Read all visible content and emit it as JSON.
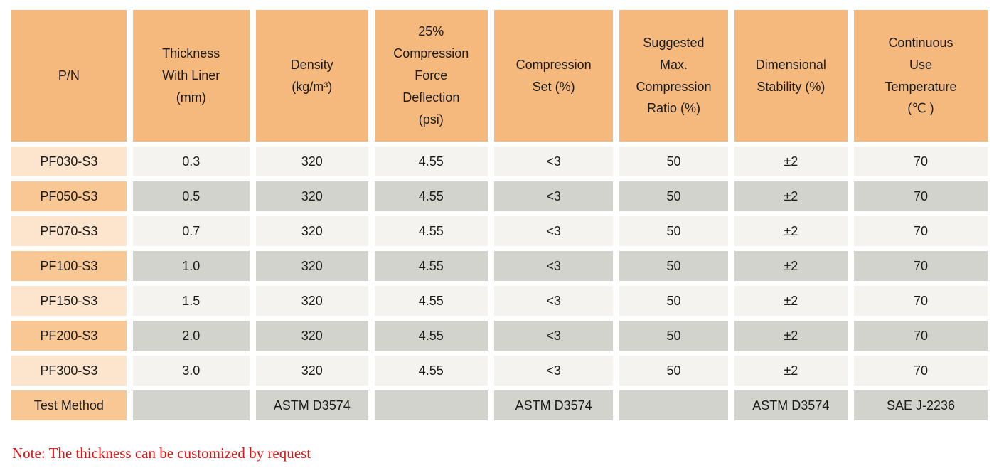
{
  "colors": {
    "header_bg": "#f5b97e",
    "label_light_bg": "#fce4cd",
    "label_dark_bg": "#f8c794",
    "cell_light_bg": "#f4f3ef",
    "cell_dark_bg": "#d3d3cd",
    "text_color": "#1b1b1b",
    "note_color": "#e01111",
    "page_bg": "#ffffff"
  },
  "header": {
    "columns": [
      {
        "id": "pn",
        "label": "P/N"
      },
      {
        "id": "thickness-with-liner",
        "label": "Thickness\nWith Liner\n(mm)"
      },
      {
        "id": "density",
        "label": "Density\n(kg/m³)"
      },
      {
        "id": "compression-force-deflection",
        "label": "25%\nCompression\nForce\nDeflection\n(psi)"
      },
      {
        "id": "compression-set",
        "label": "Compression\nSet (%)"
      },
      {
        "id": "suggested-max-compression-ratio",
        "label": "Suggested\nMax.\nCompression\nRatio (%)"
      },
      {
        "id": "dimensional-stability",
        "label": "Dimensional\nStability (%)"
      },
      {
        "id": "continuous-use-temperature",
        "label": "Continuous\nUse\nTemperature\n(℃ )"
      }
    ]
  },
  "rows": [
    {
      "name": "row-pf030-s3",
      "label": "PF030-S3",
      "values": [
        "0.3",
        "320",
        "4.55",
        "<3",
        "50",
        "±2",
        "70"
      ]
    },
    {
      "name": "row-pf050-s3",
      "label": "PF050-S3",
      "values": [
        "0.5",
        "320",
        "4.55",
        "<3",
        "50",
        "±2",
        "70"
      ]
    },
    {
      "name": "row-pf070-s3",
      "label": "PF070-S3",
      "values": [
        "0.7",
        "320",
        "4.55",
        "<3",
        "50",
        "±2",
        "70"
      ]
    },
    {
      "name": "row-pf100-s3",
      "label": "PF100-S3",
      "values": [
        "1.0",
        "320",
        "4.55",
        "<3",
        "50",
        "±2",
        "70"
      ]
    },
    {
      "name": "row-pf150-s3",
      "label": "PF150-S3",
      "values": [
        "1.5",
        "320",
        "4.55",
        "<3",
        "50",
        "±2",
        "70"
      ]
    },
    {
      "name": "row-pf200-s3",
      "label": "PF200-S3",
      "values": [
        "2.0",
        "320",
        "4.55",
        "<3",
        "50",
        "±2",
        "70"
      ]
    },
    {
      "name": "row-pf300-s3",
      "label": "PF300-S3",
      "values": [
        "3.0",
        "320",
        "4.55",
        "<3",
        "50",
        "±2",
        "70"
      ]
    },
    {
      "name": "row-test-method",
      "label": "Test Method",
      "values": [
        "",
        "ASTM D3574",
        "",
        "ASTM D3574",
        "",
        "ASTM D3574",
        "SAE J-2236"
      ]
    }
  ],
  "note": "Note: The thickness can be customized by request"
}
